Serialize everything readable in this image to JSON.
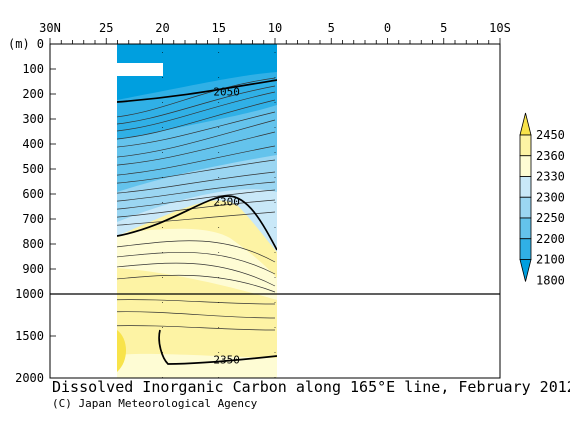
{
  "chart_data": {
    "type": "contour",
    "title": "Dissolved Inorganic Carbon along 165°E line, February 2012",
    "credit": "(C) Japan Meteorological Agency",
    "x_axis": {
      "ticks": [
        {
          "lat": 30,
          "label": "30N"
        },
        {
          "lat": 25,
          "label": "25"
        },
        {
          "lat": 20,
          "label": "20"
        },
        {
          "lat": 15,
          "label": "15"
        },
        {
          "lat": 10,
          "label": "10"
        },
        {
          "lat": 5,
          "label": "5"
        },
        {
          "lat": 0,
          "label": "0"
        },
        {
          "lat": -5,
          "label": "5"
        },
        {
          "lat": -10,
          "label": "10S"
        }
      ],
      "range": [
        30,
        -10
      ],
      "data_extent": [
        25,
        10
      ]
    },
    "y_axis": {
      "unit": "(m)",
      "upper_panel_range": [
        0,
        1000
      ],
      "upper_ticks": [
        0,
        100,
        200,
        300,
        400,
        500,
        600,
        700,
        800,
        900,
        1000
      ],
      "lower_panel_range": [
        1000,
        2000
      ],
      "lower_ticks": [
        1500,
        2000
      ]
    },
    "colorbar": {
      "levels": [
        1800,
        2100,
        2200,
        2250,
        2300,
        2330,
        2360,
        2450
      ],
      "labels": [
        "2450",
        "2360",
        "2330",
        "2300",
        "2250",
        "2200",
        "2100",
        "1800"
      ],
      "colors": [
        "#009fdf",
        "#30b0e6",
        "#64c3ec",
        "#9bd6f2",
        "#c9e8f8",
        "#fefcd4",
        "#fdf3a4",
        "#f8e34a"
      ]
    },
    "contour_labels": [
      {
        "value": "2050",
        "lat": 14.3,
        "depth": 190
      },
      {
        "value": "2300",
        "lat": 14.3,
        "depth": 630
      },
      {
        "value": "2350",
        "lat": 14.3,
        "depth": 1780
      }
    ],
    "bold_contours": [
      2050,
      2300,
      2350
    ]
  }
}
